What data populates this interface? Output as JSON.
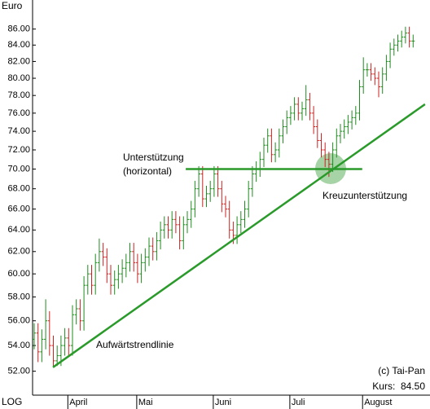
{
  "chart_data": {
    "type": "ohlc",
    "y_label": "Euro",
    "scale_label": "LOG",
    "log_scale": true,
    "up_color": "#1e8c1e",
    "down_color": "#cc2222",
    "line_color": "#2a9a2a",
    "ylim": [
      50.2,
      88.9
    ],
    "yticks": [
      {
        "value": 52,
        "label": "52.00"
      },
      {
        "value": 54,
        "label": "54.00"
      },
      {
        "value": 56,
        "label": "56.00"
      },
      {
        "value": 58,
        "label": "58.00"
      },
      {
        "value": 60,
        "label": "60.00"
      },
      {
        "value": 62,
        "label": "62.00"
      },
      {
        "value": 64,
        "label": "64.00"
      },
      {
        "value": 66,
        "label": "66.00"
      },
      {
        "value": 68,
        "label": "68.00"
      },
      {
        "value": 70,
        "label": "70.00"
      },
      {
        "value": 72,
        "label": "72.00"
      },
      {
        "value": 74,
        "label": "74.00"
      },
      {
        "value": 76,
        "label": "76.00"
      },
      {
        "value": 78,
        "label": "78.00"
      },
      {
        "value": 80,
        "label": "80.00"
      },
      {
        "value": 82,
        "label": "82.00"
      },
      {
        "value": 84,
        "label": "84.00"
      },
      {
        "value": 86,
        "label": "86.00"
      }
    ],
    "categories": [
      null,
      null,
      null,
      null,
      null,
      null,
      null,
      null,
      null,
      "April",
      null,
      null,
      null,
      null,
      null,
      null,
      null,
      null,
      null,
      null,
      null,
      null,
      null,
      null,
      null,
      null,
      null,
      "Mai",
      null,
      null,
      null,
      null,
      null,
      null,
      null,
      null,
      null,
      null,
      null,
      null,
      null,
      null,
      null,
      null,
      null,
      null,
      null,
      "Juni",
      null,
      null,
      null,
      null,
      null,
      null,
      null,
      null,
      null,
      null,
      null,
      null,
      null,
      null,
      null,
      null,
      null,
      null,
      null,
      "Juli",
      null,
      null,
      null,
      null,
      null,
      null,
      null,
      null,
      null,
      null,
      null,
      null,
      null,
      null,
      null,
      null,
      null,
      null,
      "August",
      null,
      null,
      null,
      null,
      null,
      null,
      null,
      null,
      null,
      null,
      null,
      null,
      null
    ],
    "open": [
      54.5,
      55,
      53.5,
      54.5,
      56,
      54,
      52.8,
      53.2,
      54,
      54.6,
      54,
      56.5,
      57,
      56,
      59,
      60,
      59,
      61,
      62,
      61.5,
      60,
      59,
      59.5,
      60,
      60.5,
      61,
      62,
      61,
      60,
      61,
      61.5,
      62.5,
      62,
      63,
      64,
      64.5,
      64,
      65,
      64.5,
      63,
      64.5,
      65,
      66,
      68,
      69.5,
      67,
      67.5,
      68,
      69.5,
      68,
      66.5,
      66,
      64,
      63.5,
      64.5,
      65,
      66,
      68,
      69.5,
      70,
      71,
      72.5,
      73.5,
      71.5,
      72,
      73.5,
      74.5,
      75.5,
      76,
      77,
      76,
      76.5,
      77.5,
      76,
      74.5,
      73,
      72,
      71,
      70.5,
      72,
      73.5,
      74,
      74.5,
      75,
      75.5,
      76,
      79,
      81,
      81,
      80.5,
      80,
      79,
      80.5,
      82,
      83.5,
      84,
      84.5,
      85,
      85.5,
      84.5
    ],
    "high": [
      55.8,
      55.8,
      55.3,
      57.8,
      56.8,
      54.8,
      54,
      54.8,
      55.4,
      55.4,
      57.3,
      57.8,
      57.8,
      59.8,
      60.8,
      60.8,
      61.8,
      63.2,
      62.8,
      62.3,
      60.8,
      60.3,
      60.8,
      61.3,
      61.8,
      62.8,
      62.8,
      61.8,
      61.8,
      62.3,
      63.3,
      63.3,
      63.8,
      64.8,
      65.3,
      65.3,
      65.8,
      65.8,
      65.3,
      65.3,
      65.8,
      66.8,
      68.8,
      70.3,
      70.3,
      68.3,
      68.8,
      70.3,
      70.3,
      68.8,
      67.3,
      66.8,
      64.8,
      65.3,
      65.8,
      66.8,
      68.8,
      70.3,
      70.8,
      71.8,
      73.3,
      74.3,
      74.3,
      72.8,
      74.3,
      75.3,
      76.3,
      76.8,
      77.8,
      77.8,
      77.3,
      79.2,
      78.3,
      76.8,
      75.3,
      73.8,
      72.8,
      71.8,
      72.8,
      74.3,
      74.8,
      75.3,
      75.8,
      76.3,
      76.8,
      79.8,
      82.5,
      81.8,
      81.8,
      81.3,
      80.8,
      81.3,
      82.8,
      84.3,
      84.8,
      85.3,
      85.8,
      86.3,
      86.3,
      85.3
    ],
    "low": [
      53.7,
      52.7,
      52.7,
      53.7,
      53.2,
      52.4,
      52.4,
      52.4,
      53.2,
      53.2,
      53.2,
      55.7,
      55.2,
      55.2,
      58.2,
      58.2,
      58.2,
      60.2,
      60.7,
      59.2,
      58.2,
      58.2,
      58.7,
      59.2,
      59.7,
      60.2,
      60.2,
      59.2,
      59.2,
      60.2,
      60.7,
      61.2,
      61.2,
      62.2,
      63.2,
      63.2,
      63.2,
      63.7,
      62.2,
      62.2,
      63.7,
      64.2,
      65.2,
      67.2,
      66.2,
      66.2,
      66.7,
      67.2,
      67.2,
      65.7,
      65.2,
      63.2,
      62.7,
      62.7,
      63.7,
      64.2,
      65.2,
      67.2,
      68.7,
      69.2,
      70.2,
      71.7,
      70.7,
      70.7,
      71.2,
      72.7,
      73.7,
      74.7,
      75.2,
      75.2,
      75.2,
      75.7,
      75.2,
      73.7,
      72.2,
      71.2,
      70.2,
      69.2,
      69.7,
      71.2,
      72.7,
      73.2,
      73.7,
      74.2,
      74.7,
      75.2,
      78.2,
      80.2,
      79.7,
      79.2,
      77.8,
      78.2,
      79.7,
      81.2,
      82.7,
      83.2,
      83.7,
      84.2,
      83.7,
      83.7
    ],
    "close": [
      55,
      53.5,
      54.5,
      56,
      54,
      52.8,
      53.2,
      54,
      54.6,
      54,
      56.5,
      57,
      56,
      59,
      60,
      59,
      61,
      62,
      61.5,
      60,
      59,
      59.5,
      60,
      60.5,
      61,
      62,
      61,
      60,
      61,
      61.5,
      62.5,
      62,
      63,
      64,
      64.5,
      64,
      65,
      64.5,
      63,
      64.5,
      65,
      66,
      68,
      69.5,
      67,
      67.5,
      68,
      69.5,
      68,
      66.5,
      66,
      64,
      63.5,
      64.5,
      65,
      66,
      68,
      69.5,
      70,
      71,
      72.5,
      73.5,
      71.5,
      72,
      73.5,
      74.5,
      75.5,
      76,
      77,
      76,
      76.5,
      77.5,
      76,
      74.5,
      73,
      72,
      71,
      70.5,
      72,
      73.5,
      74,
      74.5,
      75,
      75.5,
      76,
      79,
      81,
      81,
      80.5,
      80,
      79,
      80.5,
      82,
      83.5,
      84,
      84.5,
      85,
      85.5,
      84.5,
      84.5
    ],
    "trendline": {
      "x": [
        4.9,
        102.1
      ],
      "y": [
        52.3,
        77.0
      ]
    },
    "support": {
      "x": [
        39.6,
        85.7
      ],
      "y": [
        70,
        70
      ]
    },
    "annotations": [
      "Unterstützung",
      "(horizontal)",
      "Aufwärtstrendlinie",
      "Kreuzunterstützung",
      "(c) Tai-Pan",
      "Kurs:  84.50"
    ]
  }
}
